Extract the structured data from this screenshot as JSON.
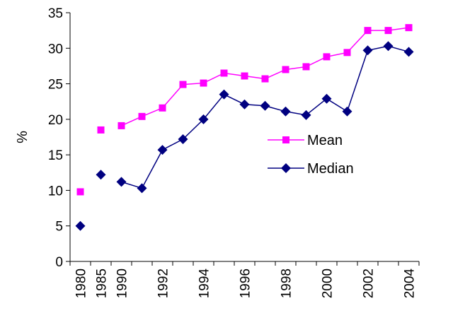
{
  "chart_data": {
    "type": "line",
    "categories": [
      "1980",
      "1985",
      "1990",
      "1991",
      "1992",
      "1993",
      "1994",
      "1995",
      "1996",
      "1997",
      "1998",
      "1999",
      "2000",
      "2001",
      "2002",
      "2003",
      "2004"
    ],
    "x_tick_labels": [
      "1980",
      "1985",
      "1990",
      "1992",
      "1994",
      "1996",
      "1998",
      "2000",
      "2002",
      "2004"
    ],
    "ylabel": "%",
    "ylim": [
      0,
      35
    ],
    "y_ticks": [
      0,
      5,
      10,
      15,
      20,
      25,
      30,
      35
    ],
    "series": [
      {
        "name": "Mean",
        "color": "#ff00ff",
        "marker": "square",
        "values": [
          9.8,
          18.5,
          19.1,
          20.4,
          21.6,
          24.9,
          25.1,
          26.5,
          26.1,
          25.7,
          27.0,
          27.4,
          28.8,
          29.4,
          32.5,
          32.5,
          32.9
        ],
        "connected_from_index": 2
      },
      {
        "name": "Median",
        "color": "#000080",
        "marker": "diamond",
        "values": [
          5.0,
          12.2,
          11.2,
          10.3,
          15.7,
          17.2,
          20.0,
          23.5,
          22.1,
          21.9,
          21.1,
          20.6,
          22.9,
          21.1,
          29.7,
          30.3,
          29.5
        ],
        "connected_from_index": 2
      }
    ],
    "legend_position": "center-right",
    "grid": false
  }
}
